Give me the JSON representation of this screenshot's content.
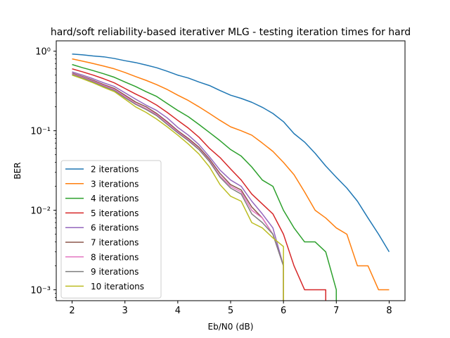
{
  "chart_data": {
    "type": "line",
    "title": "hard/soft reliability-based iterativer MLG - testing iteration times for hard",
    "xlabel": "Eb/N0 (dB)",
    "ylabel": "BER",
    "x_ticks": [
      2,
      3,
      4,
      5,
      6,
      7,
      8
    ],
    "x_tick_labels": [
      "2",
      "3",
      "4",
      "5",
      "6",
      "7",
      "8"
    ],
    "y_ticks": [
      0.001,
      0.01,
      0.1,
      1
    ],
    "y_tick_labels": [
      "10⁻³",
      "10⁻²",
      "10⁻¹",
      "10⁰"
    ],
    "xlim": [
      1.7,
      8.3
    ],
    "ylim": [
      0.00073,
      1.35
    ],
    "yscale": "log",
    "grid": false,
    "legend_position": "lower left",
    "x": [
      2,
      2.2,
      2.4,
      2.6,
      2.8,
      3,
      3.2,
      3.4,
      3.6,
      3.8,
      4,
      4.2,
      4.4,
      4.6,
      4.8,
      5,
      5.2,
      5.4,
      5.6,
      5.8,
      6,
      6.2,
      6.4,
      6.6,
      6.8,
      7,
      7.2,
      7.4,
      7.6,
      7.8,
      8
    ],
    "series": [
      {
        "name": "2 iterations",
        "color": "#1f77b4",
        "values": [
          0.92,
          0.9,
          0.87,
          0.85,
          0.81,
          0.76,
          0.72,
          0.67,
          0.62,
          0.56,
          0.5,
          0.46,
          0.41,
          0.37,
          0.32,
          0.28,
          0.255,
          0.228,
          0.197,
          0.165,
          0.13,
          0.092,
          0.072,
          0.052,
          0.036,
          0.026,
          0.019,
          0.013,
          0.008,
          0.005,
          0.003
        ]
      },
      {
        "name": "3 iterations",
        "color": "#ff7f0e",
        "values": [
          0.8,
          0.75,
          0.7,
          0.65,
          0.6,
          0.54,
          0.48,
          0.43,
          0.38,
          0.33,
          0.28,
          0.24,
          0.2,
          0.165,
          0.135,
          0.112,
          0.1,
          0.088,
          0.07,
          0.055,
          0.04,
          0.028,
          0.017,
          0.01,
          0.008,
          0.006,
          0.005,
          0.002,
          0.002,
          0.001,
          0.001
        ]
      },
      {
        "name": "4 iterations",
        "color": "#2ca02c",
        "values": [
          0.68,
          0.62,
          0.57,
          0.52,
          0.47,
          0.41,
          0.36,
          0.31,
          0.27,
          0.22,
          0.18,
          0.15,
          0.12,
          0.095,
          0.075,
          0.058,
          0.048,
          0.035,
          0.024,
          0.02,
          0.01,
          0.006,
          0.004,
          0.004,
          0.003,
          0.001,
          null,
          null,
          null,
          null,
          null
        ]
      },
      {
        "name": "5 iterations",
        "color": "#d62728",
        "values": [
          0.6,
          0.55,
          0.5,
          0.45,
          0.4,
          0.34,
          0.29,
          0.25,
          0.21,
          0.17,
          0.135,
          0.108,
          0.083,
          0.06,
          0.046,
          0.033,
          0.024,
          0.016,
          0.012,
          0.009,
          0.005,
          0.002,
          0.001,
          0.001,
          0.001,
          null,
          null,
          null,
          null,
          null,
          null
        ]
      },
      {
        "name": "6 iterations",
        "color": "#9467bd",
        "values": [
          0.55,
          0.5,
          0.45,
          0.4,
          0.36,
          0.3,
          0.25,
          0.21,
          0.18,
          0.145,
          0.11,
          0.088,
          0.067,
          0.047,
          0.032,
          0.024,
          0.02,
          0.013,
          0.009,
          0.006,
          0.002,
          null,
          null,
          null,
          null,
          null,
          null,
          null,
          null,
          null,
          null
        ]
      },
      {
        "name": "7 iterations",
        "color": "#8c564b",
        "values": [
          0.53,
          0.48,
          0.43,
          0.38,
          0.34,
          0.28,
          0.23,
          0.2,
          0.165,
          0.13,
          0.1,
          0.08,
          0.062,
          0.044,
          0.029,
          0.021,
          0.018,
          0.011,
          0.008,
          0.005,
          0.002,
          null,
          null,
          null,
          null,
          null,
          null,
          null,
          null,
          null,
          null
        ]
      },
      {
        "name": "8 iterations",
        "color": "#e377c2",
        "values": [
          0.52,
          0.47,
          0.42,
          0.37,
          0.33,
          0.27,
          0.22,
          0.19,
          0.16,
          0.125,
          0.097,
          0.077,
          0.059,
          0.042,
          0.027,
          0.02,
          0.017,
          0.01,
          0.008,
          0.005,
          0.002,
          null,
          null,
          null,
          null,
          null,
          null,
          null,
          null,
          null,
          null
        ]
      },
      {
        "name": "9 iterations",
        "color": "#7f7f7f",
        "values": [
          0.51,
          0.46,
          0.41,
          0.36,
          0.32,
          0.26,
          0.215,
          0.185,
          0.155,
          0.12,
          0.094,
          0.075,
          0.058,
          0.041,
          0.026,
          0.019,
          0.016,
          0.009,
          0.007,
          0.005,
          0.002,
          null,
          null,
          null,
          null,
          null,
          null,
          null,
          null,
          null,
          null
        ]
      },
      {
        "name": "10 iterations",
        "color": "#bcbd22",
        "values": [
          0.5,
          0.45,
          0.4,
          0.35,
          0.31,
          0.25,
          0.2,
          0.17,
          0.14,
          0.112,
          0.088,
          0.068,
          0.051,
          0.035,
          0.021,
          0.015,
          0.013,
          0.007,
          0.006,
          0.0045,
          0.0035,
          null,
          null,
          null,
          null,
          null,
          null,
          null,
          null,
          null,
          null
        ]
      }
    ]
  }
}
